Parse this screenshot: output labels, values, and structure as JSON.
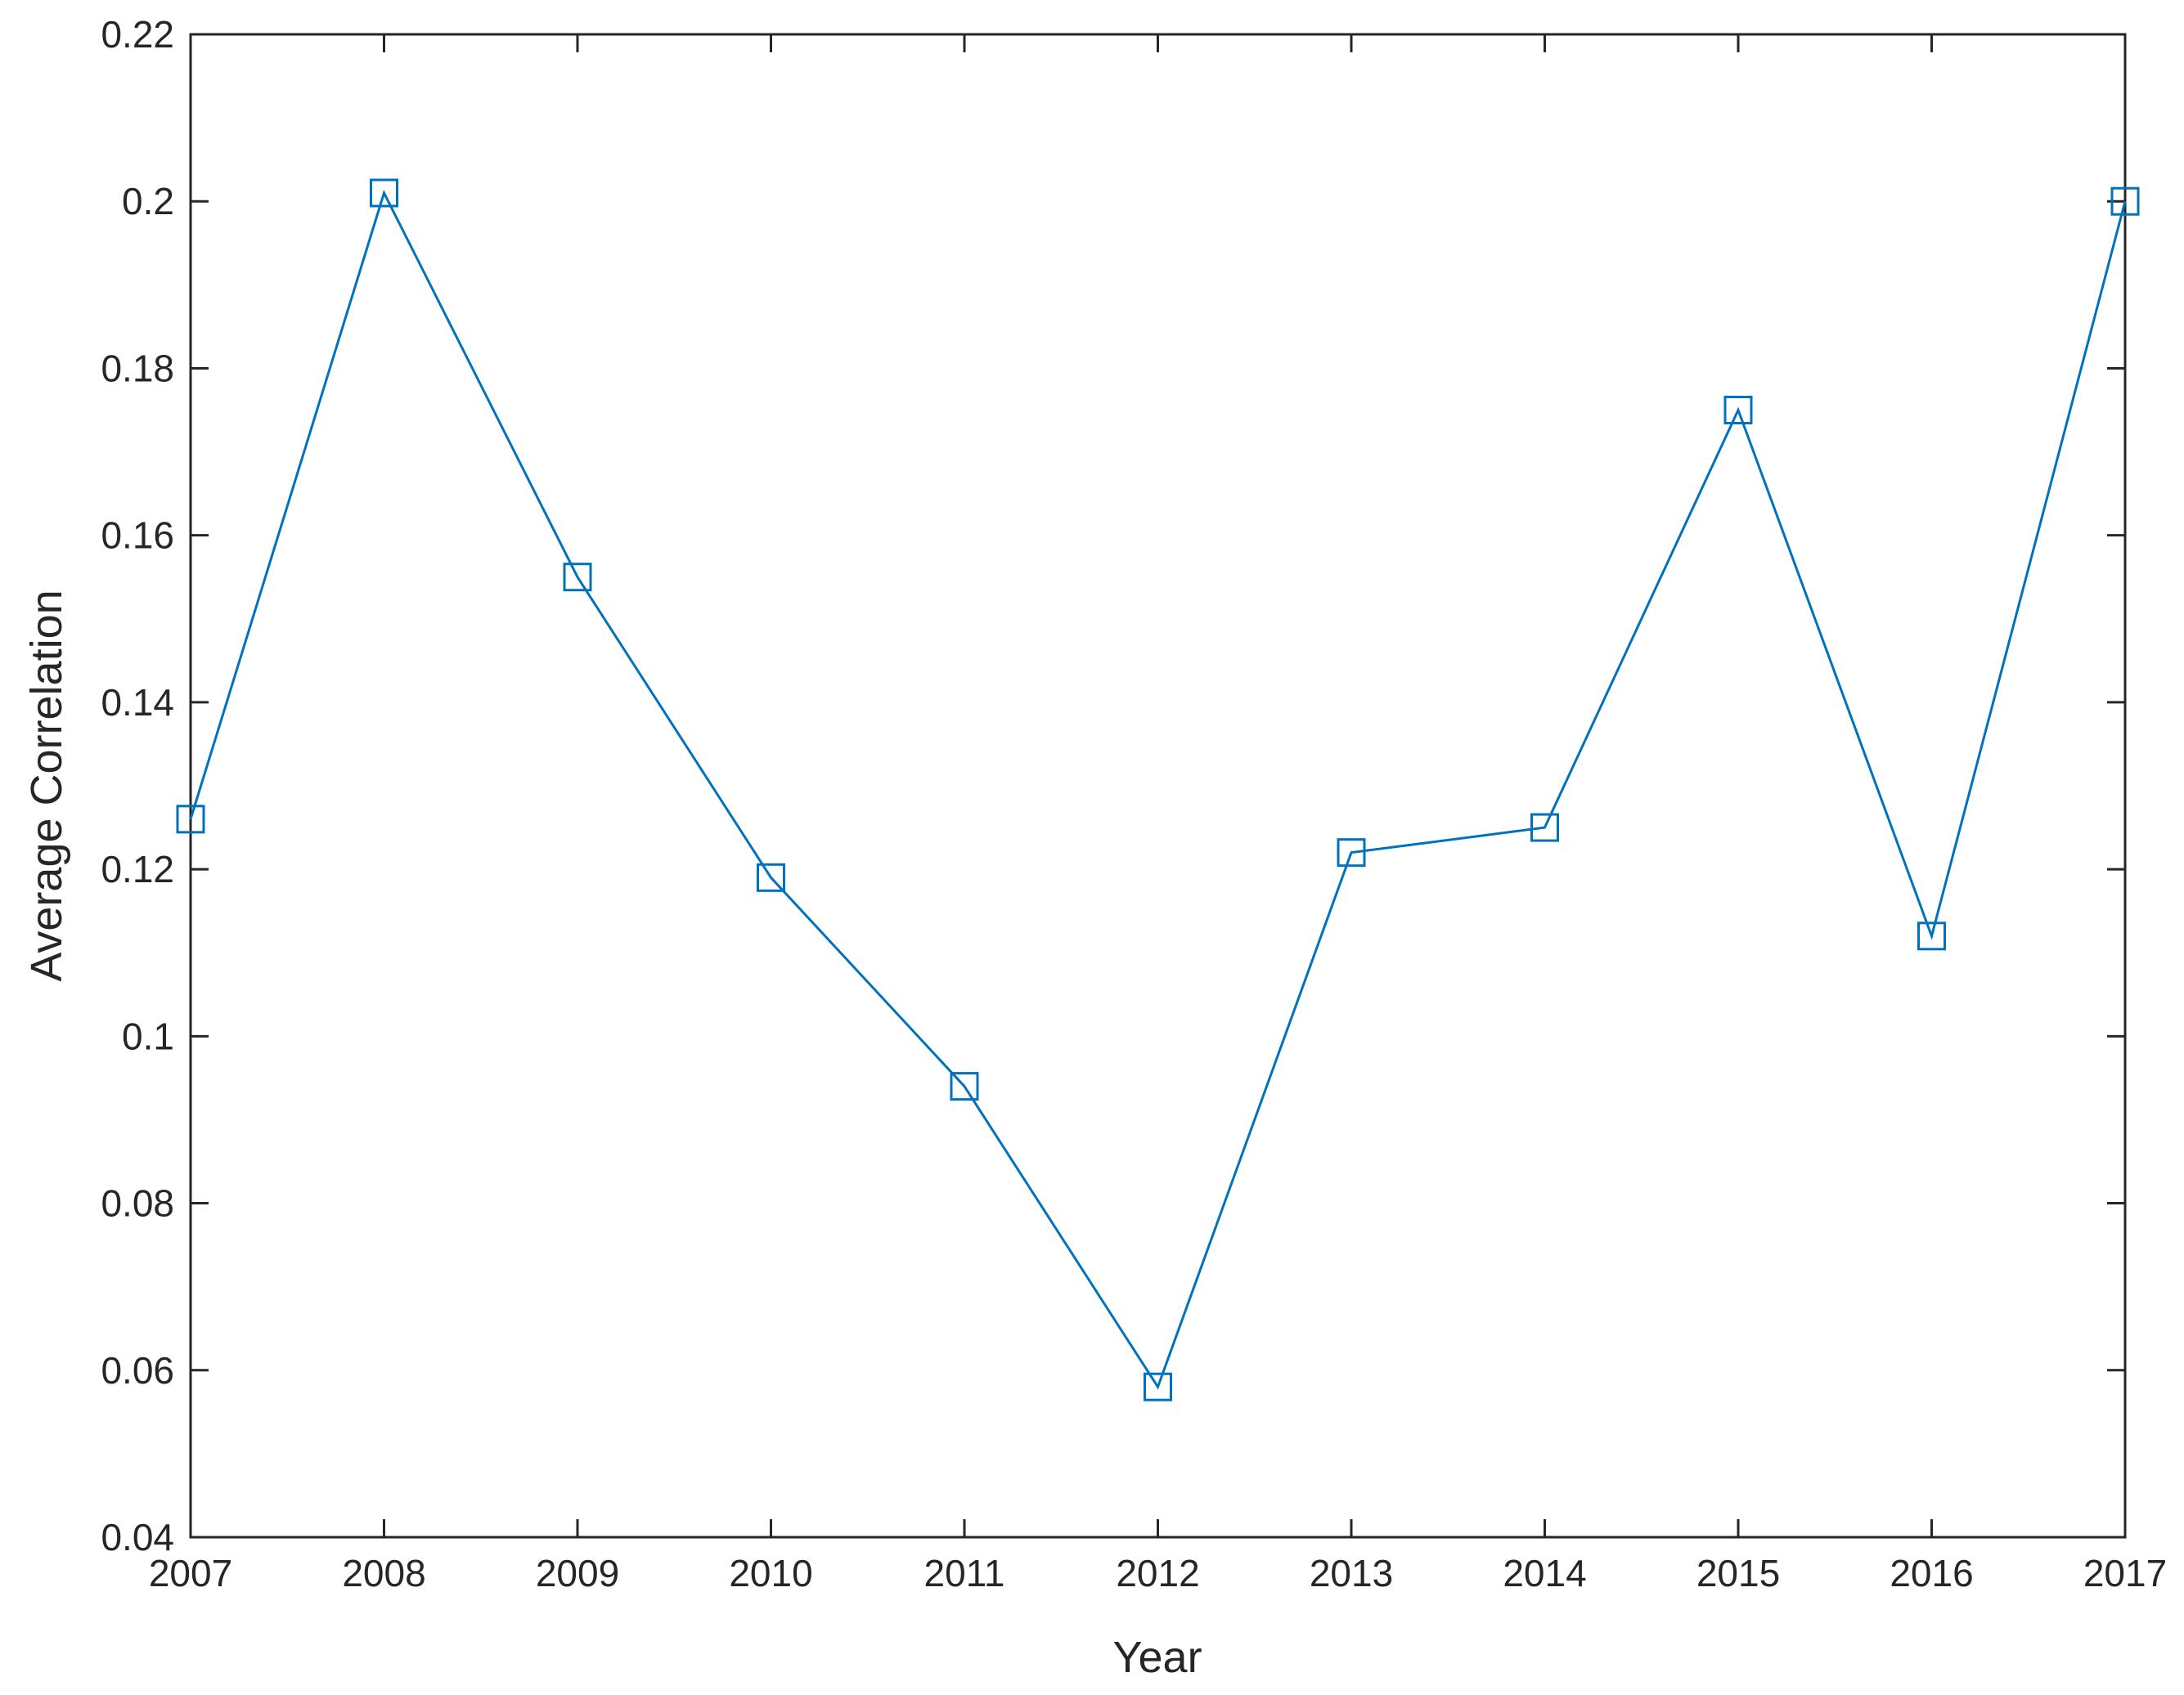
{
  "chart_data": {
    "type": "line",
    "title": "",
    "xlabel": "Year",
    "ylabel": "Average Correlation",
    "x": [
      2007,
      2008,
      2009,
      2010,
      2011,
      2012,
      2013,
      2014,
      2015,
      2016,
      2017
    ],
    "xticks": [
      "2007",
      "2008",
      "2009",
      "2010",
      "2011",
      "2012",
      "2013",
      "2014",
      "2015",
      "2016",
      "2017"
    ],
    "xlim": [
      2007,
      2017
    ],
    "ylim": [
      0.04,
      0.22
    ],
    "yticks": [
      "0.04",
      "0.06",
      "0.08",
      "0.1",
      "0.12",
      "0.14",
      "0.16",
      "0.18",
      "0.2",
      "0.22"
    ],
    "series": [
      {
        "values": [
          0.126,
          0.201,
          0.155,
          0.119,
          0.094,
          0.058,
          0.122,
          0.125,
          0.175,
          0.112,
          0.2
        ],
        "marker": "square",
        "color": "#0072BD"
      }
    ],
    "grid": false,
    "legend": "none"
  }
}
